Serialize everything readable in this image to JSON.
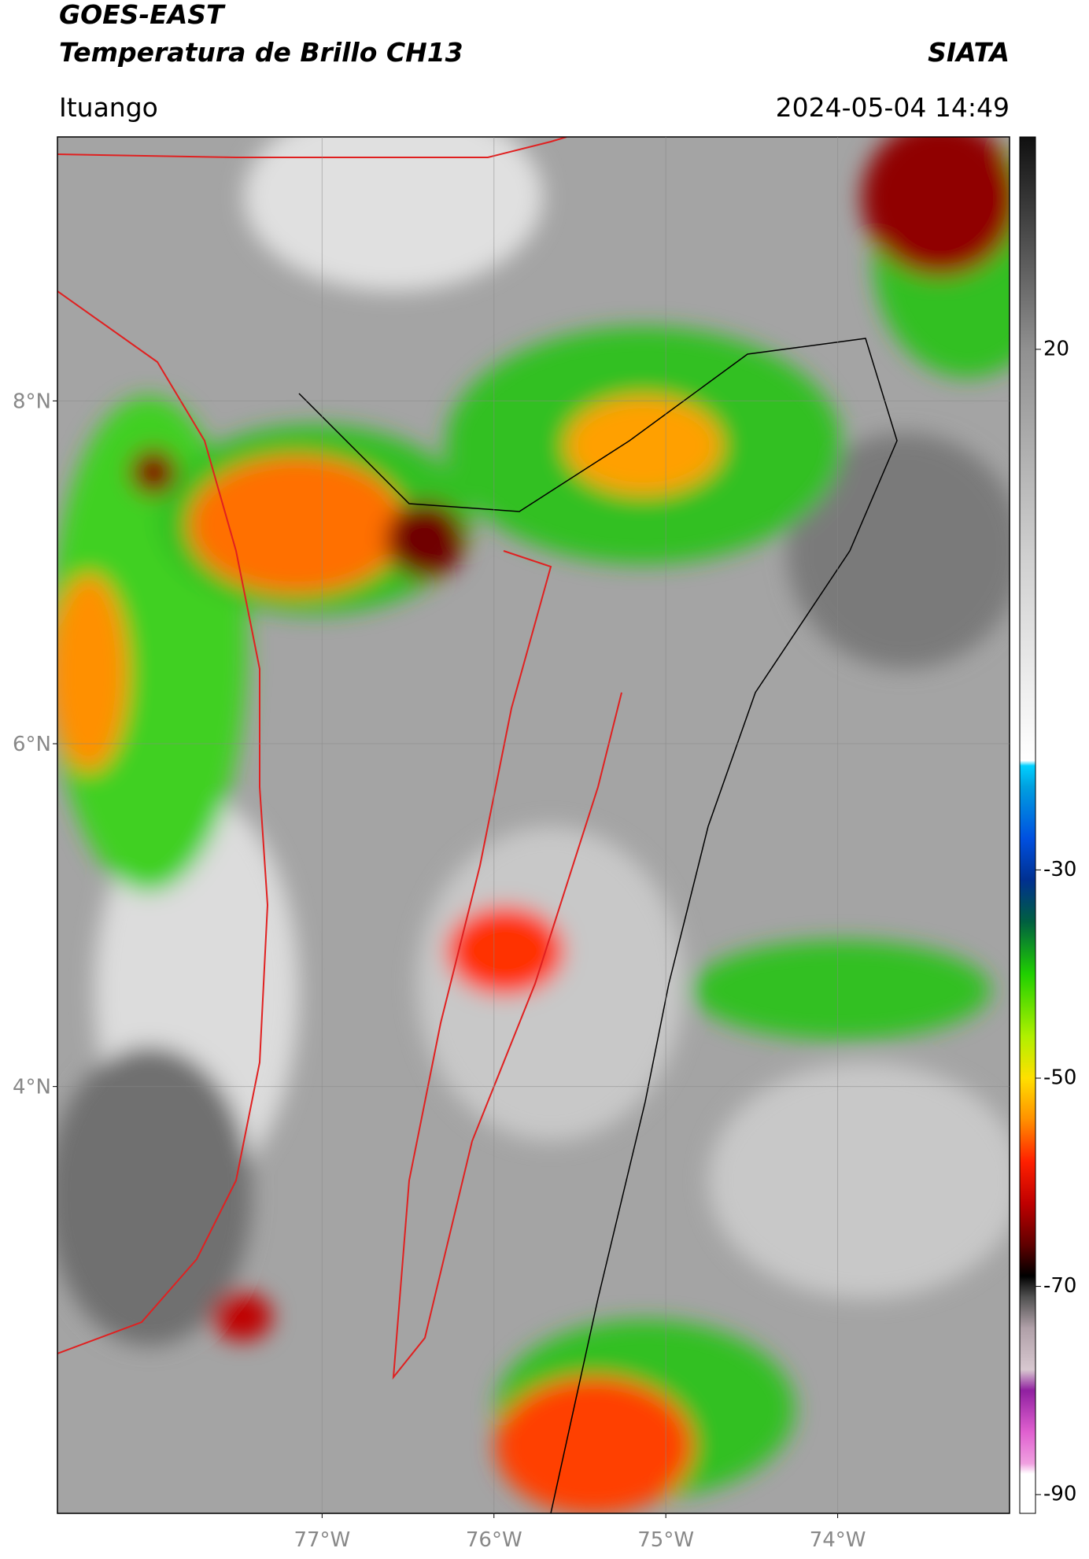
{
  "header": {
    "title": "GOES-EAST",
    "subtitle": "Temperatura de Brillo CH13",
    "source": "SIATA",
    "location": "Ituango",
    "datetime": "2024-05-04 14:49"
  },
  "map": {
    "ylim": [
      1.51,
      9.54
    ],
    "xlim": [
      -78.54,
      -73.0
    ],
    "yticks": [
      {
        "value": 4,
        "label": "4°N"
      },
      {
        "value": 6,
        "label": "6°N"
      },
      {
        "value": 8,
        "label": "8°N"
      }
    ],
    "xticks": [
      {
        "value": -77,
        "label": "77°W"
      },
      {
        "value": -76,
        "label": "76°W"
      },
      {
        "value": -75,
        "label": "75°W"
      },
      {
        "value": -74,
        "label": "74°W"
      }
    ],
    "grid": true,
    "colorbar": {
      "clim": [
        -91.8,
        40.4
      ],
      "ticks": [
        -90,
        -70,
        -50,
        -30,
        20
      ],
      "colormap": [
        {
          "value": -91.8,
          "color": "#ffffff"
        },
        {
          "value": -88,
          "color": "#ffffff"
        },
        {
          "value": -87,
          "color": "#f0a0e0"
        },
        {
          "value": -84,
          "color": "#e060d0"
        },
        {
          "value": -80,
          "color": "#9020a0"
        },
        {
          "value": -78,
          "color": "#d8c8d0"
        },
        {
          "value": -74,
          "color": "#b0a0a8"
        },
        {
          "value": -71,
          "color": "#505050"
        },
        {
          "value": -69,
          "color": "#000000"
        },
        {
          "value": -66,
          "color": "#600000"
        },
        {
          "value": -62,
          "color": "#c00000"
        },
        {
          "value": -58,
          "color": "#ff2000"
        },
        {
          "value": -54,
          "color": "#ff9000"
        },
        {
          "value": -50,
          "color": "#ffe000"
        },
        {
          "value": -46,
          "color": "#b0f000"
        },
        {
          "value": -40,
          "color": "#20d000"
        },
        {
          "value": -35,
          "color": "#006040"
        },
        {
          "value": -31,
          "color": "#003090"
        },
        {
          "value": -27,
          "color": "#0050e0"
        },
        {
          "value": -22,
          "color": "#00a0e0"
        },
        {
          "value": -20,
          "color": "#00d0ff"
        },
        {
          "value": -19.5,
          "color": "#ffffff"
        },
        {
          "value": 0,
          "color": "#d0d0d0"
        },
        {
          "value": 20,
          "color": "#909090"
        },
        {
          "value": 40.4,
          "color": "#101010"
        }
      ]
    }
  }
}
